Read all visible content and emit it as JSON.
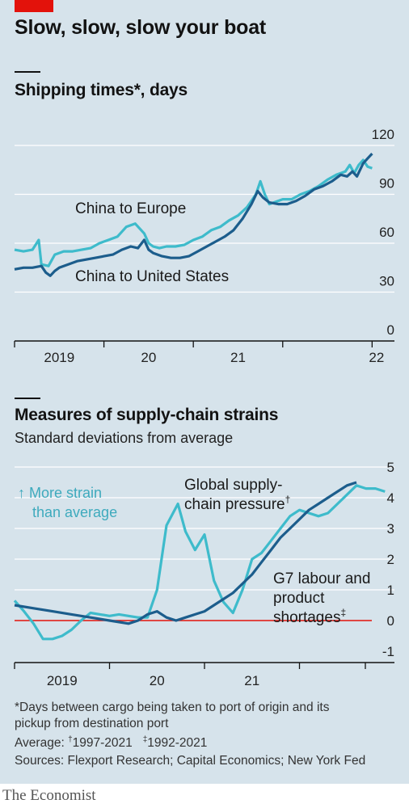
{
  "header": {
    "title": "Slow, slow, slow your boat"
  },
  "chart_data": [
    {
      "type": "line",
      "title": "Shipping times*, days",
      "xlabel": "",
      "ylabel": "",
      "ylim": [
        0,
        120
      ],
      "yticks": [
        0,
        30,
        60,
        90,
        120
      ],
      "xlim": [
        2018.0,
        2022.25
      ],
      "xticks": [
        {
          "label": "2019",
          "pos": 2019.0
        },
        {
          "label": "20",
          "pos": 2020.0
        },
        {
          "label": "21",
          "pos": 2021.0
        },
        {
          "label": "22",
          "pos": 2022.0
        }
      ],
      "grid": true,
      "series": [
        {
          "name": "China to Europe",
          "color": "#3ebbcb",
          "x": [
            2018.0,
            2018.1,
            2018.2,
            2018.27,
            2018.3,
            2018.38,
            2018.45,
            2018.55,
            2018.65,
            2018.75,
            2018.85,
            2018.95,
            2019.05,
            2019.15,
            2019.25,
            2019.35,
            2019.45,
            2019.5,
            2019.55,
            2019.62,
            2019.7,
            2019.8,
            2019.9,
            2020.0,
            2020.1,
            2020.2,
            2020.3,
            2020.4,
            2020.5,
            2020.6,
            2020.7,
            2020.75,
            2020.8,
            2020.85,
            2020.9,
            2021.0,
            2021.1,
            2021.2,
            2021.3,
            2021.4,
            2021.5,
            2021.6,
            2021.7,
            2021.75,
            2021.8,
            2021.85,
            2021.9,
            2021.95,
            2022.0
          ],
          "values": [
            56,
            55,
            56,
            62,
            47,
            46,
            53,
            55,
            55,
            56,
            57,
            60,
            62,
            64,
            70,
            72,
            66,
            60,
            58,
            57,
            58,
            58,
            59,
            62,
            64,
            68,
            70,
            74,
            77,
            82,
            90,
            98,
            90,
            84,
            85,
            87,
            87,
            90,
            92,
            95,
            99,
            102,
            104,
            108,
            103,
            108,
            111,
            107,
            106
          ]
        },
        {
          "name": "China to United States",
          "color": "#1c5d8c",
          "x": [
            2018.0,
            2018.1,
            2018.2,
            2018.3,
            2018.35,
            2018.4,
            2018.45,
            2018.5,
            2018.6,
            2018.7,
            2018.8,
            2018.9,
            2019.0,
            2019.1,
            2019.2,
            2019.3,
            2019.38,
            2019.45,
            2019.5,
            2019.55,
            2019.65,
            2019.75,
            2019.85,
            2019.95,
            2020.05,
            2020.15,
            2020.25,
            2020.35,
            2020.45,
            2020.55,
            2020.65,
            2020.72,
            2020.78,
            2020.85,
            2020.95,
            2021.05,
            2021.15,
            2021.25,
            2021.35,
            2021.45,
            2021.55,
            2021.65,
            2021.72,
            2021.78,
            2021.83,
            2021.9,
            2021.95,
            2022.0
          ],
          "values": [
            44,
            45,
            45,
            46,
            42,
            40,
            43,
            45,
            47,
            49,
            50,
            51,
            52,
            53,
            56,
            58,
            57,
            62,
            56,
            54,
            52,
            51,
            51,
            52,
            55,
            58,
            61,
            64,
            68,
            75,
            84,
            92,
            88,
            85,
            84,
            84,
            86,
            89,
            93,
            95,
            98,
            102,
            101,
            104,
            101,
            109,
            112,
            115
          ]
        }
      ],
      "annotations": [
        "China to Europe",
        "China to United States"
      ]
    },
    {
      "type": "line",
      "title": "Measures of supply-chain strains",
      "subtitle": "Standard deviations from average",
      "xlabel": "",
      "ylabel": "",
      "ylim": [
        -1,
        5
      ],
      "yticks": [
        -1,
        0,
        1,
        2,
        3,
        4,
        5
      ],
      "xlim": [
        2018.0,
        2022.0
      ],
      "xticks": [
        {
          "label": "2019",
          "pos": 2019.0
        },
        {
          "label": "20",
          "pos": 2020.0
        },
        {
          "label": "21",
          "pos": 2021.0
        }
      ],
      "grid": true,
      "note": "↑ More strain than average",
      "series": [
        {
          "name": "Global supply-chain pressure",
          "footnote_mark": "†",
          "color": "#3ebbcb",
          "x": [
            2018.0,
            2018.1,
            2018.2,
            2018.3,
            2018.4,
            2018.5,
            2018.6,
            2018.7,
            2018.8,
            2018.9,
            2019.0,
            2019.1,
            2019.2,
            2019.3,
            2019.4,
            2019.5,
            2019.6,
            2019.72,
            2019.8,
            2019.9,
            2020.0,
            2020.1,
            2020.2,
            2020.3,
            2020.4,
            2020.5,
            2020.6,
            2020.7,
            2020.8,
            2020.9,
            2021.0,
            2021.1,
            2021.2,
            2021.3,
            2021.4,
            2021.5,
            2021.6,
            2021.7,
            2021.8,
            2021.9
          ],
          "values": [
            0.65,
            0.3,
            -0.1,
            -0.6,
            -0.6,
            -0.5,
            -0.3,
            0.0,
            0.25,
            0.2,
            0.15,
            0.2,
            0.15,
            0.1,
            0.1,
            1.0,
            3.1,
            3.8,
            2.9,
            2.3,
            2.8,
            1.3,
            0.6,
            0.25,
            1.0,
            2.0,
            2.2,
            2.6,
            3.0,
            3.4,
            3.6,
            3.5,
            3.4,
            3.5,
            3.8,
            4.1,
            4.4,
            4.3,
            4.3,
            4.2
          ]
        },
        {
          "name": "G7 labour and product shortages",
          "footnote_mark": "‡",
          "color": "#1c5d8c",
          "x": [
            2018.0,
            2018.2,
            2018.4,
            2018.6,
            2018.8,
            2019.0,
            2019.2,
            2019.3,
            2019.4,
            2019.5,
            2019.6,
            2019.7,
            2019.8,
            2019.9,
            2020.0,
            2020.1,
            2020.2,
            2020.3,
            2020.4,
            2020.5,
            2020.6,
            2020.7,
            2020.8,
            2020.9,
            2021.0,
            2021.1,
            2021.2,
            2021.3,
            2021.4,
            2021.5,
            2021.6
          ],
          "values": [
            0.5,
            0.4,
            0.3,
            0.2,
            0.1,
            0.0,
            -0.1,
            0.0,
            0.2,
            0.3,
            0.1,
            0.0,
            0.1,
            0.2,
            0.3,
            0.5,
            0.7,
            0.9,
            1.2,
            1.5,
            1.9,
            2.3,
            2.7,
            3.0,
            3.3,
            3.6,
            3.8,
            4.0,
            4.2,
            4.4,
            4.5
          ]
        }
      ],
      "annotations": [
        "Global supply-",
        "chain pressure",
        "G7 labour and",
        "product",
        "shortages"
      ],
      "zero_line_color": "#e3120b"
    }
  ],
  "sections": {
    "s1_title": "Shipping times*, days",
    "s2_title": "Measures of supply-chain strains",
    "s2_subtitle": "Standard deviations from average"
  },
  "footnotes": {
    "line1": "*Days between cargo being taken to port of origin and its",
    "line2": "pickup from destination port",
    "average_label": "Average: ",
    "dagger": "†",
    "dagger_text": "1997-2021",
    "ddagger": "‡",
    "ddagger_text": "1992-2021",
    "sources": "Sources: Flexport Research; Capital Economics; New York Fed"
  },
  "brand": "The Economist",
  "colors": {
    "background": "#d6e3eb",
    "accent_red": "#e3120b",
    "light_series": "#3ebbcb",
    "dark_series": "#1c5d8c"
  }
}
